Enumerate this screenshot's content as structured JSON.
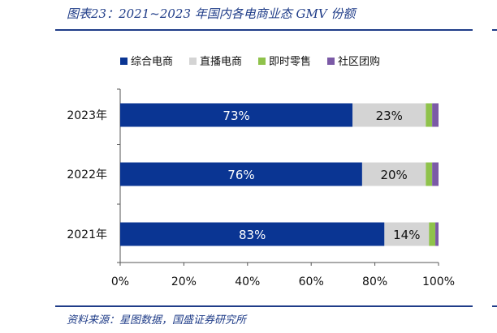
{
  "title": "图表23：2021~2023 年国内各电商业态 GMV 份额",
  "source": "资料来源：星图数据，国盛证券研究所",
  "chart_data": {
    "type": "bar",
    "orientation": "horizontal",
    "stacked": true,
    "categories": [
      "2023年",
      "2022年",
      "2021年"
    ],
    "series": [
      {
        "name": "综合电商",
        "color": "#0a3593",
        "values": [
          73,
          76,
          83
        ],
        "labels": [
          "73%",
          "76%",
          "83%"
        ]
      },
      {
        "name": "直播电商",
        "color": "#d4d4d4",
        "values": [
          23,
          20,
          14
        ],
        "labels": [
          "23%",
          "20%",
          "14%"
        ]
      },
      {
        "name": "即时零售",
        "color": "#8fc24b",
        "values": [
          2,
          2,
          2
        ],
        "labels": [
          "",
          "",
          ""
        ]
      },
      {
        "name": "社区团购",
        "color": "#7b5aa6",
        "values": [
          2,
          2,
          1
        ],
        "labels": [
          "",
          "",
          ""
        ]
      }
    ],
    "xlim": [
      0,
      100
    ],
    "xticks": [
      0,
      20,
      40,
      60,
      80,
      100
    ],
    "xtick_labels": [
      "0%",
      "20%",
      "40%",
      "60%",
      "80%",
      "100%"
    ],
    "grid": false,
    "legend_position": "top"
  }
}
